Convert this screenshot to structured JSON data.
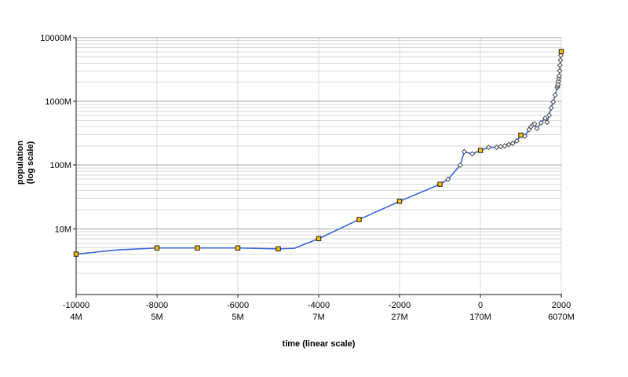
{
  "page": {
    "background": "#ffffff"
  },
  "chart_data": {
    "type": "line",
    "title": "",
    "xlabel": "time (linear scale)",
    "ylabel": "population (log scale)",
    "ylabel_lines": [
      "population",
      "(log scale)"
    ],
    "x_axis": {
      "scale": "linear",
      "domain_years": [
        -10000,
        2000
      ],
      "ticks": [
        {
          "year": "-10000",
          "population": "4M"
        },
        {
          "year": "-8000",
          "population": "5M"
        },
        {
          "year": "-6000",
          "population": "5M"
        },
        {
          "year": "-4000",
          "population": "7M"
        },
        {
          "year": "-2000",
          "population": "27M"
        },
        {
          "year": "0",
          "population": "170M"
        },
        {
          "year": "2000",
          "population": "6070M"
        }
      ],
      "tick_years": [
        -10000,
        -8000,
        -6000,
        -4000,
        -2000,
        0,
        2000
      ],
      "grid_years": [
        -8000,
        -6000,
        -4000,
        -2000,
        0,
        2000
      ]
    },
    "y_axis": {
      "scale": "log",
      "domain_millions": [
        1,
        10000
      ],
      "ticks": [
        {
          "label": "10000M",
          "value_millions": 10000
        },
        {
          "label": "1000M",
          "value_millions": 1000
        },
        {
          "label": "100M",
          "value_millions": 100
        },
        {
          "label": "10M",
          "value_millions": 10
        }
      ]
    },
    "series": {
      "line_color": "#3866dd",
      "points": [
        {
          "year": -10000,
          "population_millions": 4,
          "marker": "square"
        },
        {
          "year": -9000,
          "population_millions": 4.65,
          "marker": "none"
        },
        {
          "year": -8000,
          "population_millions": 5,
          "marker": "square"
        },
        {
          "year": -7000,
          "population_millions": 5,
          "marker": "square"
        },
        {
          "year": -6000,
          "population_millions": 5,
          "marker": "square"
        },
        {
          "year": -5000,
          "population_millions": 4.85,
          "marker": "square"
        },
        {
          "year": -4600,
          "population_millions": 4.95,
          "marker": "none"
        },
        {
          "year": -4000,
          "population_millions": 7,
          "marker": "square"
        },
        {
          "year": -3000,
          "population_millions": 14,
          "marker": "square"
        },
        {
          "year": -2000,
          "population_millions": 27,
          "marker": "square"
        },
        {
          "year": -1000,
          "population_millions": 50,
          "marker": "square"
        },
        {
          "year": -800,
          "population_millions": 60,
          "marker": "diamond"
        },
        {
          "year": -500,
          "population_millions": 100,
          "marker": "diamond"
        },
        {
          "year": -400,
          "population_millions": 162,
          "marker": "diamond"
        },
        {
          "year": -200,
          "population_millions": 150,
          "marker": "diamond"
        },
        {
          "year": 1,
          "population_millions": 170,
          "marker": "square"
        },
        {
          "year": 200,
          "population_millions": 190,
          "marker": "diamond"
        },
        {
          "year": 400,
          "population_millions": 190,
          "marker": "diamond"
        },
        {
          "year": 500,
          "population_millions": 195,
          "marker": "diamond"
        },
        {
          "year": 600,
          "population_millions": 200,
          "marker": "diamond"
        },
        {
          "year": 700,
          "population_millions": 210,
          "marker": "diamond"
        },
        {
          "year": 800,
          "population_millions": 220,
          "marker": "diamond"
        },
        {
          "year": 900,
          "population_millions": 240,
          "marker": "diamond"
        },
        {
          "year": 1000,
          "population_millions": 295,
          "marker": "square"
        },
        {
          "year": 1100,
          "population_millions": 285,
          "marker": "diamond"
        },
        {
          "year": 1200,
          "population_millions": 360,
          "marker": "diamond"
        },
        {
          "year": 1250,
          "population_millions": 400,
          "marker": "diamond"
        },
        {
          "year": 1300,
          "population_millions": 430,
          "marker": "diamond"
        },
        {
          "year": 1340,
          "population_millions": 443,
          "marker": "diamond"
        },
        {
          "year": 1400,
          "population_millions": 375,
          "marker": "diamond"
        },
        {
          "year": 1500,
          "population_millions": 460,
          "marker": "diamond"
        },
        {
          "year": 1600,
          "population_millions": 545,
          "marker": "diamond"
        },
        {
          "year": 1650,
          "population_millions": 470,
          "marker": "diamond"
        },
        {
          "year": 1700,
          "population_millions": 610,
          "marker": "diamond"
        },
        {
          "year": 1750,
          "population_millions": 790,
          "marker": "diamond"
        },
        {
          "year": 1800,
          "population_millions": 980,
          "marker": "diamond"
        },
        {
          "year": 1850,
          "population_millions": 1260,
          "marker": "diamond"
        },
        {
          "year": 1900,
          "population_millions": 1650,
          "marker": "diamond"
        },
        {
          "year": 1910,
          "population_millions": 1750,
          "marker": "diamond"
        },
        {
          "year": 1920,
          "population_millions": 1860,
          "marker": "diamond"
        },
        {
          "year": 1930,
          "population_millions": 2070,
          "marker": "diamond"
        },
        {
          "year": 1940,
          "population_millions": 2300,
          "marker": "diamond"
        },
        {
          "year": 1950,
          "population_millions": 2520,
          "marker": "diamond"
        },
        {
          "year": 1960,
          "population_millions": 3020,
          "marker": "diamond"
        },
        {
          "year": 1970,
          "population_millions": 3700,
          "marker": "diamond"
        },
        {
          "year": 1980,
          "population_millions": 4440,
          "marker": "diamond"
        },
        {
          "year": 1990,
          "population_millions": 5270,
          "marker": "diamond"
        },
        {
          "year": 2000,
          "population_millions": 6070,
          "marker": "square"
        }
      ]
    },
    "marker_styles": {
      "square": {
        "fill": "#ffc000",
        "stroke": "#1a1a1a"
      },
      "diamond": {
        "fill": "#ffffff",
        "stroke": "#4a4a4a"
      }
    },
    "grid_colors": {
      "major": "#a3a3a3",
      "minor": "#d9d9d9",
      "vertical": "#d9d9d9"
    },
    "axis_color": "#1a1a1a",
    "legend": "none",
    "grid": "on"
  }
}
